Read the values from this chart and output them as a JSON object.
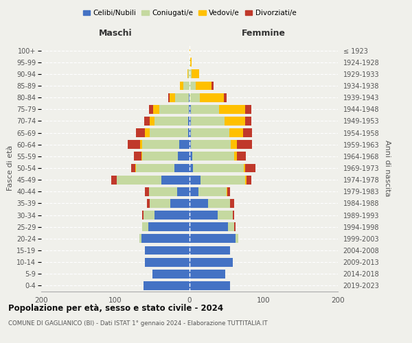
{
  "age_groups": [
    "0-4",
    "5-9",
    "10-14",
    "15-19",
    "20-24",
    "25-29",
    "30-34",
    "35-39",
    "40-44",
    "45-49",
    "50-54",
    "55-59",
    "60-64",
    "65-69",
    "70-74",
    "75-79",
    "80-84",
    "85-89",
    "90-94",
    "95-99",
    "100+"
  ],
  "birth_years": [
    "2019-2023",
    "2014-2018",
    "2009-2013",
    "2004-2008",
    "1999-2003",
    "1994-1998",
    "1989-1993",
    "1984-1988",
    "1979-1983",
    "1974-1978",
    "1969-1973",
    "1964-1968",
    "1959-1963",
    "1954-1958",
    "1949-1953",
    "1944-1948",
    "1939-1943",
    "1934-1938",
    "1929-1933",
    "1924-1928",
    "≤ 1923"
  ],
  "males": {
    "celibi": [
      62,
      50,
      60,
      60,
      65,
      56,
      47,
      26,
      17,
      38,
      20,
      16,
      14,
      2,
      2,
      1,
      1,
      0,
      0,
      0,
      0
    ],
    "coniugati": [
      0,
      0,
      0,
      0,
      3,
      8,
      15,
      28,
      38,
      60,
      52,
      48,
      50,
      52,
      45,
      40,
      18,
      8,
      2,
      0,
      0
    ],
    "vedovi": [
      0,
      0,
      0,
      0,
      0,
      0,
      0,
      0,
      0,
      0,
      1,
      1,
      3,
      6,
      7,
      8,
      8,
      5,
      1,
      0,
      0
    ],
    "divorziati": [
      0,
      0,
      0,
      0,
      0,
      0,
      2,
      3,
      5,
      8,
      6,
      10,
      16,
      12,
      7,
      6,
      2,
      0,
      0,
      0,
      0
    ]
  },
  "females": {
    "nubili": [
      55,
      48,
      58,
      55,
      62,
      52,
      38,
      25,
      12,
      15,
      5,
      4,
      2,
      2,
      2,
      2,
      0,
      0,
      0,
      0,
      0
    ],
    "coniugate": [
      0,
      0,
      0,
      0,
      4,
      8,
      20,
      30,
      38,
      60,
      68,
      56,
      54,
      52,
      45,
      38,
      14,
      8,
      3,
      1,
      0
    ],
    "vedove": [
      0,
      0,
      0,
      0,
      0,
      0,
      0,
      0,
      1,
      2,
      2,
      4,
      8,
      18,
      28,
      35,
      32,
      22,
      10,
      2,
      1
    ],
    "divorziate": [
      0,
      0,
      0,
      0,
      0,
      2,
      2,
      5,
      4,
      6,
      14,
      12,
      20,
      12,
      8,
      8,
      4,
      2,
      0,
      0,
      0
    ]
  },
  "colors": {
    "celibi": "#4472c4",
    "coniugati": "#c5d9a0",
    "vedovi": "#ffc000",
    "divorziati": "#c0392b"
  },
  "title": "Popolazione per età, sesso e stato civile - 2024",
  "subtitle": "COMUNE DI GAGLIANICO (BI) - Dati ISTAT 1° gennaio 2024 - Elaborazione TUTTITALIA.IT",
  "xlabel_left": "Maschi",
  "xlabel_right": "Femmine",
  "ylabel_left": "Fasce di età",
  "ylabel_right": "Anni di nascita",
  "xlim": 200,
  "legend_labels": [
    "Celibi/Nubili",
    "Coniugati/e",
    "Vedovi/e",
    "Divorziati/e"
  ],
  "background_color": "#f0f0eb"
}
